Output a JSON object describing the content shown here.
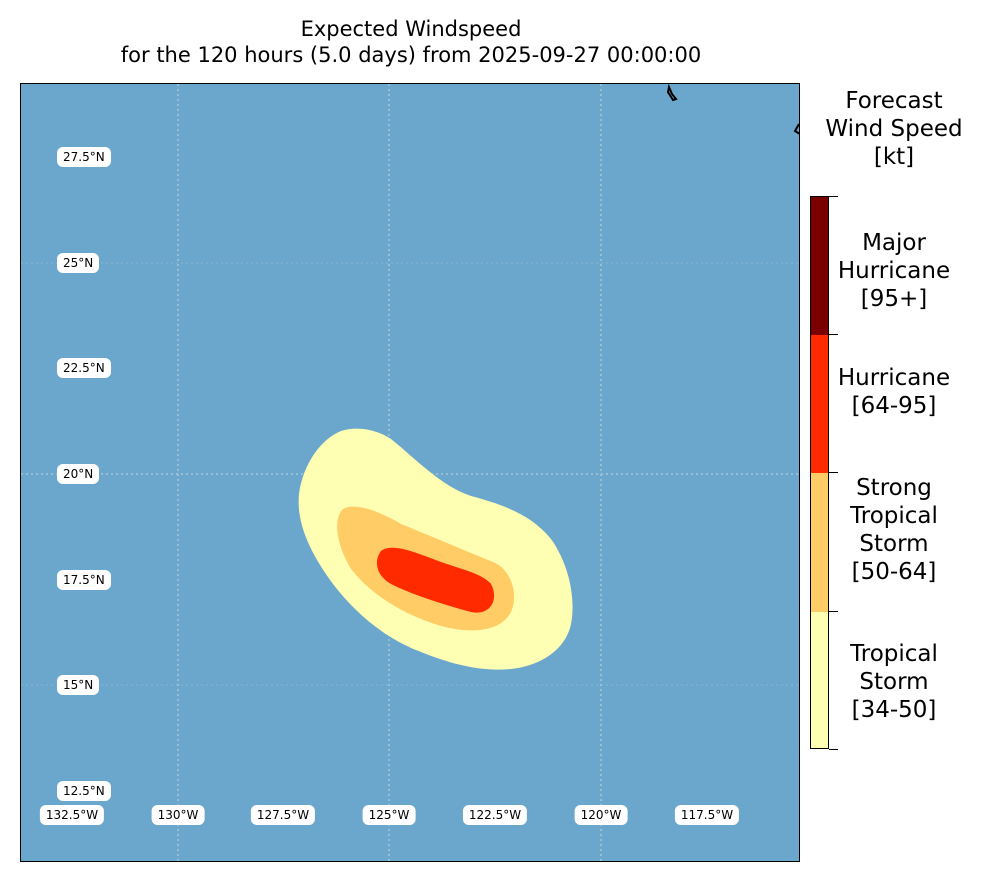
{
  "title": {
    "line1": "Expected Windspeed",
    "line2": "for the 120 hours (5.0 days) from 2025-09-27 00:00:00"
  },
  "map": {
    "ocean_color": "#6ba7cc",
    "grid_color": "#e0e0e0",
    "lat_labels": [
      "27.5°N",
      "25°N",
      "22.5°N",
      "20°N",
      "17.5°N",
      "15°N",
      "12.5°N"
    ],
    "lon_labels": [
      "132.5°W",
      "130°W",
      "127.5°W",
      "125°W",
      "122.5°W",
      "120°W",
      "117.5°W"
    ],
    "wind_field": {
      "tropical_storm_color": "#ffffb3",
      "strong_tropical_storm_color": "#ffcc66",
      "hurricane_color": "#ff2a00"
    }
  },
  "colorbar": {
    "title_lines": [
      "Forecast",
      "Wind Speed",
      "[kt]"
    ],
    "categories": [
      {
        "lines": [
          "Major",
          "Hurricane",
          "[95+]"
        ],
        "color": "#7a0000"
      },
      {
        "lines": [
          "Hurricane",
          "[64-95]"
        ],
        "color": "#ff2a00"
      },
      {
        "lines": [
          "Strong",
          "Tropical",
          "Storm",
          "[50-64]"
        ],
        "color": "#ffcc66"
      },
      {
        "lines": [
          "Tropical",
          "Storm",
          "[34-50]"
        ],
        "color": "#ffffb3"
      }
    ]
  }
}
